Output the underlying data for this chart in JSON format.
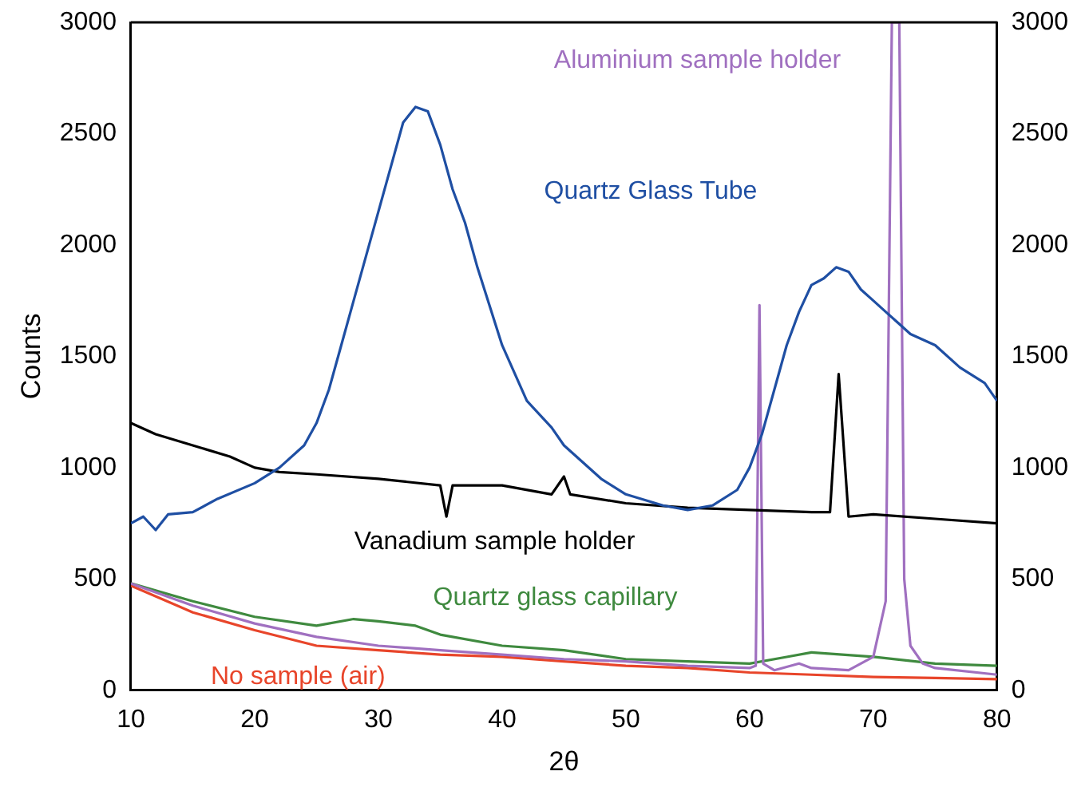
{
  "chart_data": {
    "type": "line",
    "xlabel": "2θ",
    "ylabel": "Counts",
    "xlim": [
      10,
      80
    ],
    "xticks": [
      10,
      20,
      30,
      40,
      50,
      60,
      70,
      80
    ],
    "ylim": [
      0,
      3000
    ],
    "yticks": [
      0,
      500,
      1000,
      1500,
      2000,
      2500,
      3000
    ],
    "y2lim": [
      0,
      3000
    ],
    "y2ticks": [
      0,
      500,
      1000,
      1500,
      2000,
      2500,
      3000
    ],
    "grid": false,
    "legend": false,
    "marker": "none",
    "line_style": "solid",
    "series": [
      {
        "name": "Quartz Glass Tube",
        "color": "#1f4fa3",
        "x": [
          10,
          11,
          12,
          13,
          15,
          17,
          20,
          22,
          24,
          25,
          26,
          27,
          28,
          29,
          30,
          31,
          32,
          33,
          34,
          35,
          36,
          37,
          38,
          40,
          42,
          44,
          45,
          48,
          50,
          53,
          55,
          57,
          59,
          60,
          61,
          62,
          63,
          64,
          65,
          66,
          67,
          68,
          69,
          70,
          71,
          72,
          73,
          75,
          77,
          79,
          80
        ],
        "values": [
          750,
          780,
          720,
          790,
          800,
          860,
          930,
          1000,
          1100,
          1200,
          1350,
          1550,
          1750,
          1950,
          2150,
          2350,
          2550,
          2620,
          2600,
          2450,
          2250,
          2100,
          1900,
          1550,
          1300,
          1180,
          1100,
          950,
          880,
          830,
          810,
          830,
          900,
          1000,
          1150,
          1350,
          1550,
          1700,
          1820,
          1850,
          1900,
          1880,
          1800,
          1750,
          1700,
          1650,
          1600,
          1550,
          1450,
          1380,
          1300
        ]
      },
      {
        "name": "Vanadium sample holder",
        "color": "#000000",
        "x": [
          10,
          12,
          15,
          18,
          20,
          22,
          25,
          30,
          35,
          35.5,
          36,
          40,
          44,
          45,
          45.5,
          50,
          55,
          60,
          65,
          66.5,
          67.2,
          68,
          70,
          75,
          80
        ],
        "values": [
          1200,
          1150,
          1100,
          1050,
          1000,
          980,
          970,
          950,
          920,
          780,
          920,
          920,
          880,
          960,
          880,
          840,
          820,
          810,
          800,
          800,
          1420,
          780,
          790,
          770,
          750
        ]
      },
      {
        "name": "Aluminium sample holder",
        "color": "#a070c0",
        "x": [
          10,
          15,
          20,
          25,
          30,
          35,
          40,
          45,
          50,
          55,
          60,
          60.5,
          60.8,
          61.1,
          62,
          64,
          65,
          68,
          70,
          71,
          71.5,
          72.1,
          72.5,
          73,
          74,
          75,
          80
        ],
        "values": [
          480,
          380,
          300,
          240,
          200,
          180,
          160,
          140,
          130,
          110,
          100,
          110,
          1730,
          120,
          90,
          120,
          100,
          90,
          150,
          400,
          3000,
          3000,
          500,
          200,
          120,
          100,
          70
        ]
      },
      {
        "name": "Quartz glass capillary",
        "color": "#3f8a3f",
        "x": [
          10,
          15,
          20,
          25,
          28,
          30,
          33,
          35,
          40,
          45,
          50,
          55,
          60,
          63,
          65,
          70,
          75,
          80
        ],
        "values": [
          480,
          400,
          330,
          290,
          320,
          310,
          290,
          250,
          200,
          180,
          140,
          130,
          120,
          150,
          170,
          150,
          120,
          110
        ]
      },
      {
        "name": "No sample (air)",
        "color": "#e8452a",
        "x": [
          10,
          15,
          20,
          25,
          30,
          35,
          40,
          45,
          50,
          55,
          60,
          65,
          70,
          75,
          80
        ],
        "values": [
          470,
          350,
          270,
          200,
          180,
          160,
          150,
          130,
          110,
          100,
          80,
          70,
          60,
          55,
          50
        ]
      }
    ]
  }
}
